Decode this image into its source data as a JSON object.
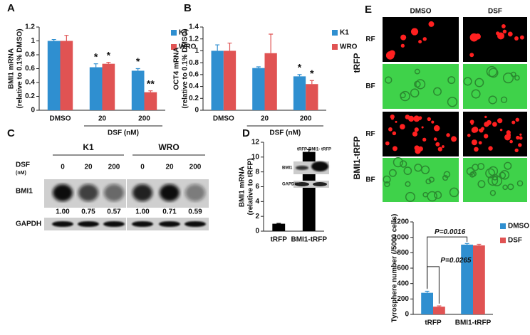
{
  "chart_data": [
    {
      "type": "bar",
      "panel": "A",
      "ylabel": [
        "BMI1 mRNA",
        "(relative to 0.1% DMSO)"
      ],
      "xlabel": "DSF (nM)",
      "categories": [
        "DMSO",
        "20",
        "200"
      ],
      "ylim": [
        0,
        1.2
      ],
      "yticks": [
        0,
        0.2,
        0.4,
        0.6,
        0.8,
        1,
        1.2
      ],
      "series": [
        {
          "name": "K1",
          "color": "#2f8fd0",
          "values": [
            1.0,
            0.62,
            0.57
          ],
          "errors": [
            0.02,
            0.05,
            0.03
          ],
          "significance": [
            null,
            "*",
            "*"
          ]
        },
        {
          "name": "WRO",
          "color": "#e05353",
          "values": [
            1.0,
            0.67,
            0.26
          ],
          "errors": [
            0.08,
            0.02,
            0.02
          ],
          "significance": [
            null,
            "*",
            "**"
          ]
        }
      ]
    },
    {
      "type": "bar",
      "panel": "B",
      "ylabel": [
        "OCT4 mRNA",
        "(relative to 0.1% DMSO)"
      ],
      "xlabel": "DSF (nM)",
      "categories": [
        "DMSO",
        "20",
        "200"
      ],
      "ylim": [
        0,
        1.4
      ],
      "yticks": [
        0,
        0.2,
        0.4,
        0.6,
        0.8,
        1,
        1.2,
        1.4
      ],
      "series": [
        {
          "name": "K1",
          "color": "#2f8fd0",
          "values": [
            1.0,
            0.71,
            0.57
          ],
          "errors": [
            0.1,
            0.02,
            0.03
          ],
          "significance": [
            null,
            null,
            "*"
          ]
        },
        {
          "name": "WRO",
          "color": "#e05353",
          "values": [
            1.0,
            0.96,
            0.44
          ],
          "errors": [
            0.13,
            0.32,
            0.06
          ],
          "significance": [
            null,
            null,
            "*"
          ]
        }
      ]
    },
    {
      "type": "bar",
      "panel": "D",
      "ylabel": [
        "BMI1 mRNA",
        "(relative to tRFP)"
      ],
      "categories": [
        "tRFP",
        "BMI1-tRFP"
      ],
      "ylim": [
        0,
        12
      ],
      "yticks": [
        0,
        2,
        4,
        6,
        8,
        10,
        12
      ],
      "series": [
        {
          "color": "#000000",
          "values": [
            1.0,
            10.7
          ],
          "errors": [
            0.05,
            0.3
          ]
        }
      ],
      "inset": {
        "lanes": [
          "tRFP",
          "BMI1-\ntRFP"
        ],
        "rows": [
          "BMI1",
          "GAPDH"
        ]
      }
    },
    {
      "type": "bar",
      "ylabel": [
        "Tyrosphere number (/5000 cells)"
      ],
      "categories": [
        "tRFP",
        "BMI1-tRFP"
      ],
      "ylim": [
        0,
        1200
      ],
      "yticks": [
        0,
        200,
        400,
        600,
        800,
        1000,
        1200
      ],
      "series": [
        {
          "name": "DMSO",
          "color": "#2f8fd0",
          "values": [
            280,
            905
          ],
          "errors": [
            20,
            15
          ]
        },
        {
          "name": "DSF",
          "color": "#e05353",
          "values": [
            100,
            895
          ],
          "errors": [
            10,
            15
          ]
        }
      ],
      "annotations": [
        "P=0.0016",
        "P=0.0265"
      ]
    }
  ],
  "blot": {
    "panel": "C",
    "groups": [
      "K1",
      "WRO"
    ],
    "treatment": [
      "DSF",
      "(nM)"
    ],
    "doses": [
      "0",
      "20",
      "200",
      "0",
      "20",
      "200"
    ],
    "rows": [
      "BMI1",
      "GAPDH"
    ],
    "ratios": [
      "1.00",
      "0.75",
      "0.57",
      "1.00",
      "0.71",
      "0.59"
    ]
  },
  "images": {
    "panel": "E",
    "columns": [
      "DMSO",
      "DSF"
    ],
    "channels": [
      "RF",
      "BF",
      "RF",
      "BF"
    ],
    "groups": [
      "tRFP",
      "BMI1-tRFP"
    ]
  }
}
